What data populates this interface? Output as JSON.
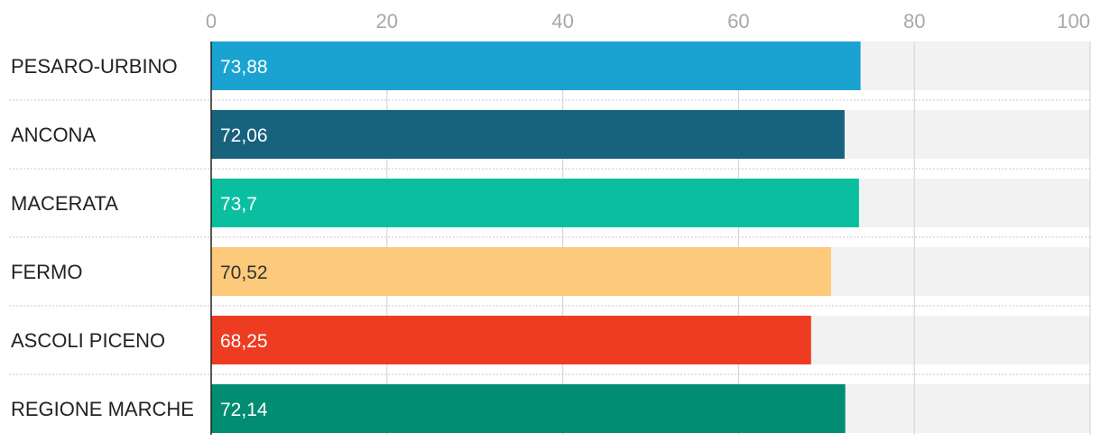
{
  "chart_data": {
    "type": "bar",
    "orientation": "horizontal",
    "categories": [
      "PESARO-URBINO",
      "ANCONA",
      "MACERATA",
      "FERMO",
      "ASCOLI PICENO",
      "REGIONE MARCHE"
    ],
    "values": [
      73.88,
      72.06,
      73.7,
      70.52,
      68.25,
      72.14
    ],
    "value_labels": [
      "73,88",
      "72,06",
      "73,7",
      "70,52",
      "68,25",
      "72,14"
    ],
    "colors": [
      "#1aa3d1",
      "#17627c",
      "#0abf9f",
      "#fdc97a",
      "#ee3c22",
      "#008d72"
    ],
    "label_colors": [
      "#ffffff",
      "#ffffff",
      "#ffffff",
      "#333333",
      "#ffffff",
      "#ffffff"
    ],
    "xlim": [
      0,
      100
    ],
    "x_ticks": [
      0,
      20,
      40,
      60,
      80,
      100
    ],
    "x_tick_labels": [
      "0",
      "20",
      "40",
      "60",
      "80",
      "100"
    ],
    "axis_position": "top",
    "grid": true,
    "background_track_color": "#f2f2f2",
    "title": "",
    "xlabel": "",
    "ylabel": ""
  }
}
